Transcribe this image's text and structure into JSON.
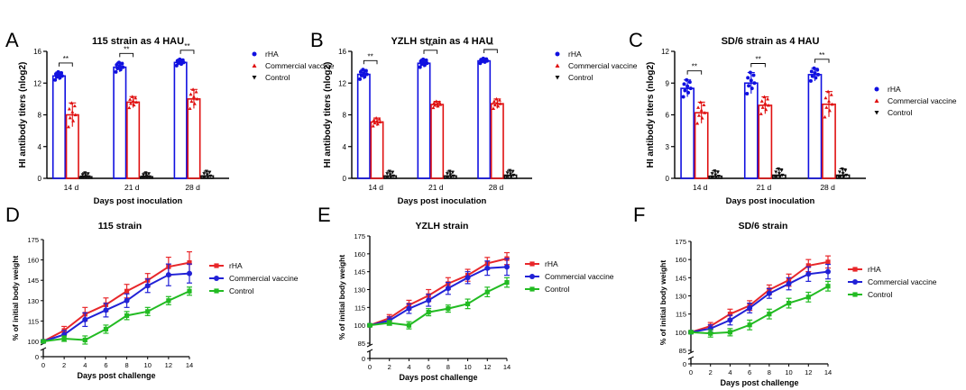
{
  "colors": {
    "rHA": "#1010e0",
    "Commercial vaccine": "#e01010",
    "Control": "#111111",
    "line_rHA": "#e8272a",
    "line_Commercial vaccine": "#2121d6",
    "line_Control": "#22bb22"
  },
  "chart_data": [
    {
      "panel": "A",
      "type": "bar",
      "title": "115 strain as 4 HAU",
      "xlabel": "Days post inoculation",
      "ylabel": "HI antibody titers (nlog2)",
      "ylim": [
        0,
        16
      ],
      "yticks": [
        0,
        4,
        8,
        12,
        16
      ],
      "categories": [
        "14 d",
        "21 d",
        "28 d"
      ],
      "significance": [
        "**",
        "**",
        "**"
      ],
      "legend_position": "right",
      "series": [
        {
          "name": "rHA",
          "values": [
            12.9,
            14.0,
            14.6
          ],
          "errors": [
            0.5,
            0.6,
            0.4
          ]
        },
        {
          "name": "Commercial vaccine",
          "values": [
            8.0,
            9.6,
            10.0
          ],
          "errors": [
            1.5,
            0.7,
            1.2
          ]
        },
        {
          "name": "Control",
          "values": [
            0.2,
            0.2,
            0.3
          ],
          "errors": [
            0.5,
            0.5,
            0.6
          ]
        }
      ]
    },
    {
      "panel": "B",
      "type": "bar",
      "title": "YZLH strain as 4 HAU",
      "xlabel": "Days post inoculation",
      "ylabel": "HI antibody titers (nlog2)",
      "ylim": [
        0,
        16
      ],
      "yticks": [
        0,
        4,
        8,
        12,
        16
      ],
      "categories": [
        "14 d",
        "21 d",
        "28 d"
      ],
      "significance": [
        "**",
        "**",
        "**"
      ],
      "legend_position": "right",
      "series": [
        {
          "name": "rHA",
          "values": [
            13.1,
            14.5,
            14.8
          ],
          "errors": [
            0.6,
            0.5,
            0.3
          ]
        },
        {
          "name": "Commercial vaccine",
          "values": [
            7.1,
            9.3,
            9.4
          ],
          "errors": [
            0.5,
            0.4,
            0.6
          ]
        },
        {
          "name": "Control",
          "values": [
            0.3,
            0.3,
            0.4
          ],
          "errors": [
            0.6,
            0.6,
            0.6
          ]
        }
      ]
    },
    {
      "panel": "C",
      "type": "bar",
      "title": "SD/6 strain as 4 HAU",
      "xlabel": "Days post inoculation",
      "ylabel": "HI antibody titers (nlog2)",
      "ylim": [
        0,
        12
      ],
      "yticks": [
        0,
        3,
        6,
        9,
        12
      ],
      "categories": [
        "14 d",
        "21 d",
        "28 d"
      ],
      "significance": [
        "**",
        "**",
        "**"
      ],
      "legend_position": "right",
      "series": [
        {
          "name": "rHA",
          "values": [
            8.5,
            9.0,
            9.8
          ],
          "errors": [
            0.8,
            1.0,
            0.6
          ]
        },
        {
          "name": "Commercial vaccine",
          "values": [
            6.2,
            6.9,
            7.0
          ],
          "errors": [
            1.0,
            0.8,
            1.2
          ]
        },
        {
          "name": "Control",
          "values": [
            0.2,
            0.3,
            0.3
          ],
          "errors": [
            0.5,
            0.6,
            0.6
          ]
        }
      ]
    },
    {
      "panel": "D",
      "type": "line",
      "title": "115 strain",
      "xlabel": "Days post challenge",
      "ylabel": "% of initial body weight",
      "ylim": [
        0,
        175
      ],
      "yticks": [
        0,
        100,
        115,
        130,
        145,
        160,
        175
      ],
      "y_break": true,
      "x": [
        0,
        2,
        4,
        6,
        8,
        10,
        12,
        14
      ],
      "xticks": [
        0,
        2,
        4,
        6,
        8,
        10,
        12,
        14
      ],
      "legend_position": "right",
      "series": [
        {
          "name": "rHA",
          "values": [
            100,
            108,
            120,
            127,
            137,
            145,
            155,
            158
          ],
          "errors": [
            1,
            3,
            5,
            5,
            5,
            5,
            7,
            8
          ]
        },
        {
          "name": "Commercial vaccine",
          "values": [
            100,
            105,
            116,
            123,
            130,
            141,
            149,
            150
          ],
          "errors": [
            1,
            3,
            5,
            5,
            5,
            5,
            8,
            7
          ]
        },
        {
          "name": "Control",
          "values": [
            100,
            102,
            101,
            109,
            119,
            122,
            130,
            137
          ],
          "errors": [
            1,
            2,
            3,
            3,
            3,
            3,
            3,
            3
          ]
        }
      ]
    },
    {
      "panel": "E",
      "type": "line",
      "title": "YZLH strain",
      "xlabel": "Days post challenge",
      "ylabel": "% of initial body weight",
      "ylim": [
        0,
        175
      ],
      "yticks": [
        0,
        85,
        100,
        115,
        130,
        145,
        160,
        175
      ],
      "y_break": true,
      "x": [
        0,
        2,
        4,
        6,
        8,
        10,
        12,
        14
      ],
      "xticks": [
        0,
        2,
        4,
        6,
        8,
        10,
        12,
        14
      ],
      "legend_position": "right",
      "series": [
        {
          "name": "rHA",
          "values": [
            100,
            106,
            117,
            125,
            135,
            142,
            152,
            156
          ],
          "errors": [
            1,
            3,
            4,
            5,
            5,
            5,
            5,
            5
          ]
        },
        {
          "name": "Commercial vaccine",
          "values": [
            100,
            104,
            114,
            121,
            131,
            140,
            148,
            149
          ],
          "errors": [
            1,
            3,
            4,
            5,
            5,
            5,
            6,
            7
          ]
        },
        {
          "name": "Control",
          "values": [
            100,
            102,
            100,
            111,
            114,
            118,
            128,
            136
          ],
          "errors": [
            1,
            2,
            3,
            3,
            3,
            4,
            4,
            4
          ]
        }
      ]
    },
    {
      "panel": "F",
      "type": "line",
      "title": "SD/6 strain",
      "xlabel": "Days post challenge",
      "ylabel": "% of initial body weight",
      "ylim": [
        0,
        175
      ],
      "yticks": [
        0,
        85,
        100,
        115,
        130,
        145,
        160,
        175
      ],
      "y_break": true,
      "x": [
        0,
        2,
        4,
        6,
        8,
        10,
        12,
        14
      ],
      "xticks": [
        0,
        2,
        4,
        6,
        8,
        10,
        12,
        14
      ],
      "legend_position": "right",
      "series": [
        {
          "name": "rHA",
          "values": [
            100,
            105,
            115,
            122,
            135,
            143,
            155,
            158
          ],
          "errors": [
            1,
            3,
            4,
            4,
            4,
            5,
            5,
            5
          ]
        },
        {
          "name": "Commercial vaccine",
          "values": [
            100,
            103,
            110,
            120,
            132,
            140,
            148,
            150
          ],
          "errors": [
            1,
            3,
            4,
            4,
            4,
            5,
            6,
            6
          ]
        },
        {
          "name": "Control",
          "values": [
            100,
            99,
            100,
            106,
            115,
            124,
            129,
            138
          ],
          "errors": [
            1,
            3,
            3,
            4,
            4,
            4,
            4,
            4
          ]
        }
      ]
    }
  ]
}
